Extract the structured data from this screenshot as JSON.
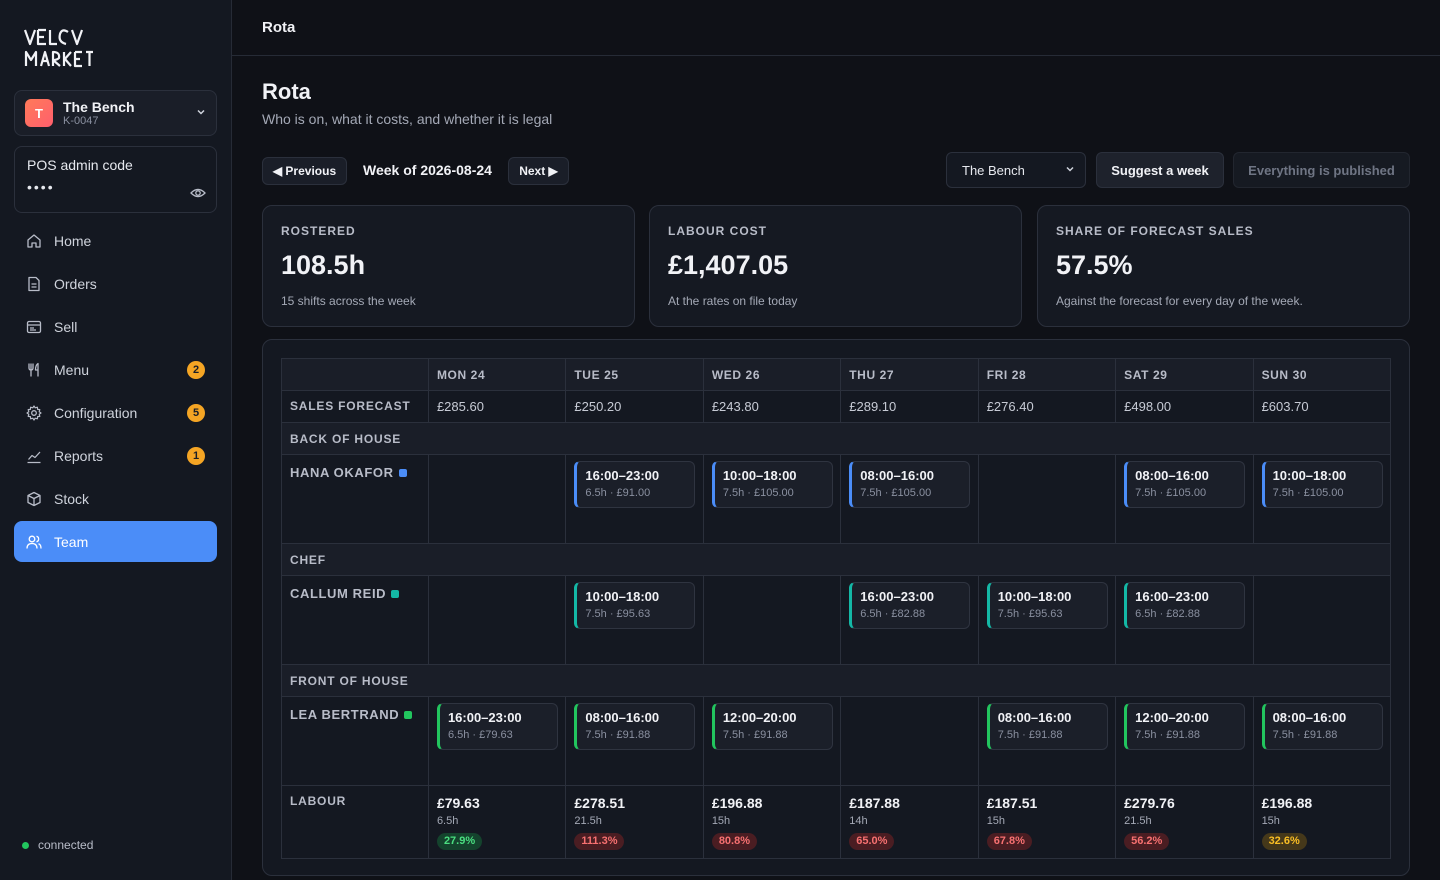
{
  "brand": {
    "logo_text": "VELCV MARKET"
  },
  "venue": {
    "initial": "T",
    "name": "The Bench",
    "code": "K-0047"
  },
  "pos": {
    "label": "POS admin code",
    "masked": "••••"
  },
  "nav": [
    {
      "label": "Home",
      "icon": "home-icon",
      "badge": ""
    },
    {
      "label": "Orders",
      "icon": "document-icon",
      "badge": ""
    },
    {
      "label": "Sell",
      "icon": "register-icon",
      "badge": ""
    },
    {
      "label": "Menu",
      "icon": "cutlery-icon",
      "badge": "2"
    },
    {
      "label": "Configuration",
      "icon": "gear-icon",
      "badge": "5"
    },
    {
      "label": "Reports",
      "icon": "chart-icon",
      "badge": "1"
    },
    {
      "label": "Stock",
      "icon": "box-icon",
      "badge": ""
    },
    {
      "label": "Team",
      "icon": "users-icon",
      "badge": "",
      "active": true
    }
  ],
  "status": {
    "label": "connected"
  },
  "topbar": {
    "title": "Rota"
  },
  "page": {
    "title": "Rota",
    "subtitle": "Who is on, what it costs, and whether it is legal"
  },
  "toolbar": {
    "prev_label": "◀ Previous",
    "week_label": "Week of 2026-08-24",
    "next_label": "Next ▶",
    "venue_select": "The Bench",
    "suggest_label": "Suggest a week",
    "published_label": "Everything is published"
  },
  "stats": [
    {
      "label": "ROSTERED",
      "value": "108.5h",
      "note": "15 shifts across the week"
    },
    {
      "label": "LABOUR COST",
      "value": "£1,407.05",
      "note": "At the rates on file today"
    },
    {
      "label": "SHARE OF FORECAST SALES",
      "value": "57.5%",
      "note": "Against the forecast for every day of the week."
    }
  ],
  "grid": {
    "days": [
      "MON 24",
      "TUE 25",
      "WED 26",
      "THU 27",
      "FRI 28",
      "SAT 29",
      "SUN 30"
    ],
    "forecast_label": "SALES FORECAST",
    "forecast": [
      "£285.60",
      "£250.20",
      "£243.80",
      "£289.10",
      "£276.40",
      "£498.00",
      "£603.70"
    ],
    "sections": [
      {
        "label": "BACK OF HOUSE",
        "staff": [
          {
            "name": "HANA OKAFOR",
            "color": "#4b8df8",
            "shifts": [
              null,
              {
                "time": "16:00–23:00",
                "meta": "6.5h · £91.00"
              },
              {
                "time": "10:00–18:00",
                "meta": "7.5h · £105.00"
              },
              {
                "time": "08:00–16:00",
                "meta": "7.5h · £105.00"
              },
              null,
              {
                "time": "08:00–16:00",
                "meta": "7.5h · £105.00"
              },
              {
                "time": "10:00–18:00",
                "meta": "7.5h · £105.00"
              }
            ]
          }
        ]
      },
      {
        "label": "CHEF",
        "staff": [
          {
            "name": "CALLUM REID",
            "color": "#14b8a6",
            "shifts": [
              null,
              {
                "time": "10:00–18:00",
                "meta": "7.5h · £95.63"
              },
              null,
              {
                "time": "16:00–23:00",
                "meta": "6.5h · £82.88"
              },
              {
                "time": "10:00–18:00",
                "meta": "7.5h · £95.63"
              },
              {
                "time": "16:00–23:00",
                "meta": "6.5h · £82.88"
              },
              null
            ]
          }
        ]
      },
      {
        "label": "FRONT OF HOUSE",
        "staff": [
          {
            "name": "LEA BERTRAND",
            "color": "#22c55e",
            "shifts": [
              {
                "time": "16:00–23:00",
                "meta": "6.5h · £79.63"
              },
              {
                "time": "08:00–16:00",
                "meta": "7.5h · £91.88"
              },
              {
                "time": "12:00–20:00",
                "meta": "7.5h · £91.88"
              },
              null,
              {
                "time": "08:00–16:00",
                "meta": "7.5h · £91.88"
              },
              {
                "time": "12:00–20:00",
                "meta": "7.5h · £91.88"
              },
              {
                "time": "08:00–16:00",
                "meta": "7.5h · £91.88"
              }
            ]
          }
        ]
      }
    ],
    "labour_label": "LABOUR",
    "labour": [
      {
        "cost": "£79.63",
        "hours": "6.5h",
        "share": "27.9%",
        "level": "good"
      },
      {
        "cost": "£278.51",
        "hours": "21.5h",
        "share": "111.3%",
        "level": "bad"
      },
      {
        "cost": "£196.88",
        "hours": "15h",
        "share": "80.8%",
        "level": "bad"
      },
      {
        "cost": "£187.88",
        "hours": "14h",
        "share": "65.0%",
        "level": "bad"
      },
      {
        "cost": "£187.51",
        "hours": "15h",
        "share": "67.8%",
        "level": "bad"
      },
      {
        "cost": "£279.76",
        "hours": "21.5h",
        "share": "56.2%",
        "level": "bad"
      },
      {
        "cost": "£196.88",
        "hours": "15h",
        "share": "32.6%",
        "level": "warn"
      }
    ]
  }
}
